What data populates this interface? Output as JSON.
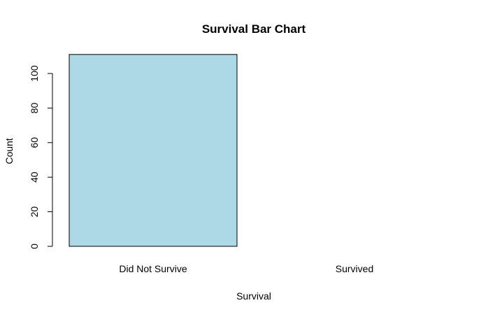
{
  "chart_data": {
    "type": "bar",
    "title": "Survival Bar Chart",
    "xlabel": "Survival",
    "ylabel": "Count",
    "categories": [
      "Did Not Survive",
      "Survived"
    ],
    "values": [
      111,
      0
    ],
    "ylim": [
      0,
      111
    ],
    "yticks": [
      0,
      20,
      40,
      60,
      80,
      100
    ],
    "bar_color": "#ADD8E6",
    "bar_border_color": "#000000",
    "grid": false,
    "legend": "none"
  }
}
